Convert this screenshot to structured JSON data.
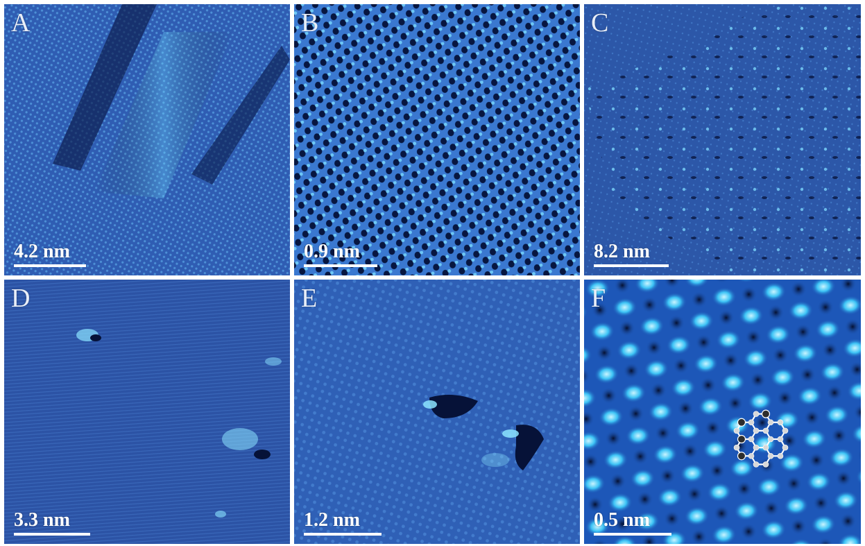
{
  "figure": {
    "panels": [
      {
        "id": "A",
        "label": "A",
        "scale_text": "4.2 nm"
      },
      {
        "id": "B",
        "label": "B",
        "scale_text": "0.9 nm"
      },
      {
        "id": "C",
        "label": "C",
        "scale_text": "8.2 nm"
      },
      {
        "id": "D",
        "label": "D",
        "scale_text": "3.3 nm"
      },
      {
        "id": "E",
        "label": "E",
        "scale_text": "1.2 nm"
      },
      {
        "id": "F",
        "label": "F",
        "scale_text": "0.5 nm"
      }
    ]
  },
  "colors": {
    "background": "#ffffff",
    "image_base": "#2a55a8",
    "image_bright": "#5fd0ff",
    "image_dark": "#071640",
    "scalebar": "#ffffff",
    "molecule_bond": "#ffffff",
    "molecule_atom": "#d8d8d8",
    "molecule_dopant_atom": "#2d2d2d"
  }
}
